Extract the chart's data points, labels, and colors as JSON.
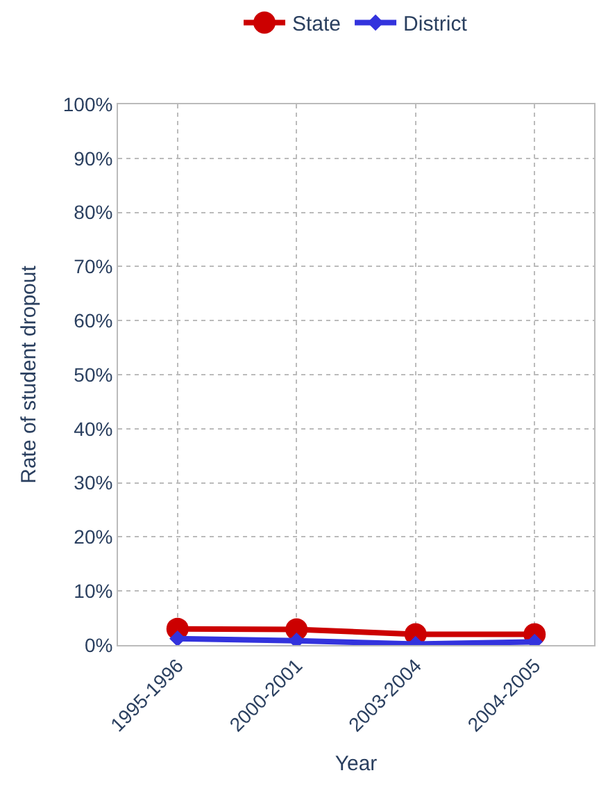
{
  "chart_data": {
    "type": "line",
    "xlabel": "Year",
    "ylabel": "Rate of student dropout",
    "categories": [
      "1995-1996",
      "2000-2001",
      "2003-2004",
      "2004-2005"
    ],
    "series": [
      {
        "name": "State",
        "color": "#cc0000",
        "values": [
          3,
          2.9,
          2,
          2
        ],
        "marker": "circle"
      },
      {
        "name": "District",
        "color": "#3333dd",
        "values": [
          1.2,
          0.8,
          0.2,
          0.6
        ],
        "marker": "diamond"
      }
    ],
    "ylim": [
      0,
      100
    ],
    "yticks": [
      {
        "value": 0,
        "label": "0%"
      },
      {
        "value": 10,
        "label": "10%"
      },
      {
        "value": 20,
        "label": "20%"
      },
      {
        "value": 30,
        "label": "30%"
      },
      {
        "value": 40,
        "label": "40%"
      },
      {
        "value": 50,
        "label": "50%"
      },
      {
        "value": 60,
        "label": "60%"
      },
      {
        "value": 70,
        "label": "70%"
      },
      {
        "value": 80,
        "label": "80%"
      },
      {
        "value": 90,
        "label": "90%"
      },
      {
        "value": 100,
        "label": "100%"
      }
    ],
    "grid": true,
    "legend": "top",
    "line_style": "solid"
  }
}
